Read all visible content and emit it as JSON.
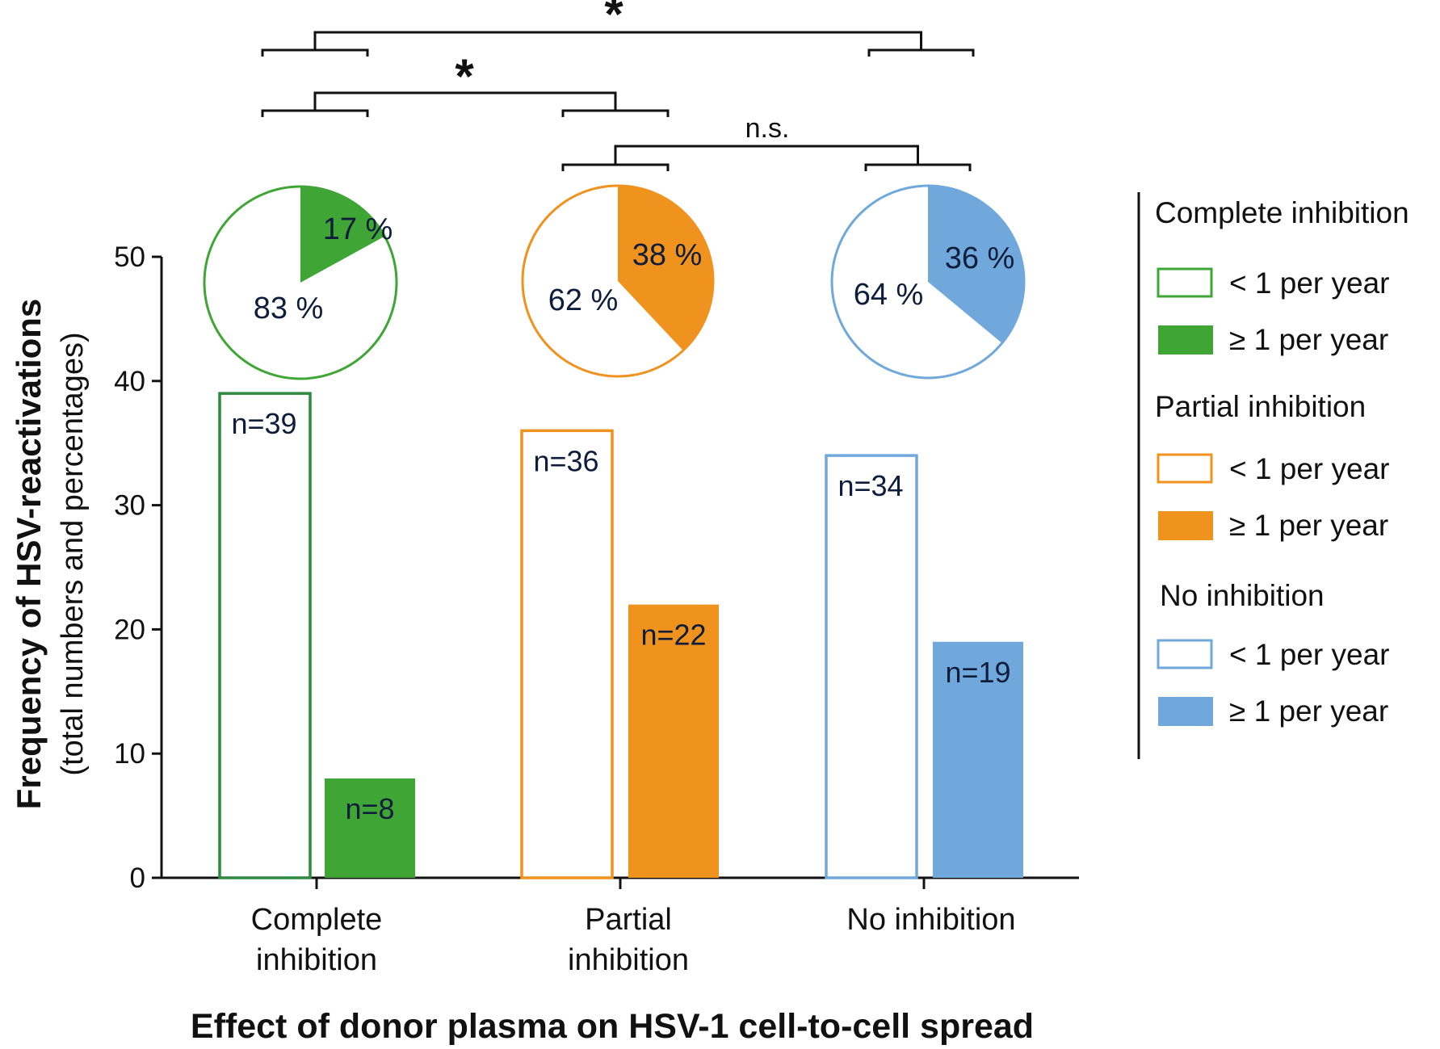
{
  "chart_data": {
    "type": "bar",
    "title": "",
    "xlabel": "Effect of donor plasma on HSV-1 cell-to-cell spread",
    "ylabel": {
      "main": "Frequency of  HSV-reactivations",
      "sub": "(total numbers and percentages)"
    },
    "ylim": [
      0,
      50
    ],
    "yticks": [
      0,
      10,
      20,
      30,
      40,
      50
    ],
    "categories": [
      {
        "label_line1": "Complete",
        "label_line2": "inhibition"
      },
      {
        "label_line1": "Partial",
        "label_line2": "inhibition"
      },
      {
        "label_line1": "No inhibition",
        "label_line2": ""
      }
    ],
    "series": [
      {
        "name": "< 1 per year",
        "style": "outline",
        "values": [
          39,
          36,
          34
        ],
        "labels": [
          "n=39",
          "n=36",
          "n=34"
        ]
      },
      {
        "name": "≥ 1 per year",
        "style": "filled",
        "values": [
          8,
          22,
          19
        ],
        "labels": [
          "n=8",
          "n=22",
          "n=19"
        ]
      }
    ],
    "colors": [
      "#3fa535",
      "#f0921e",
      "#70a8db"
    ],
    "bar_outline_color": "#2d8a3e",
    "pies": [
      {
        "filled_pct": 17,
        "filled_label": "17 %",
        "empty_label": "83 %"
      },
      {
        "filled_pct": 38,
        "filled_label": "38 %",
        "empty_label": "62 %"
      },
      {
        "filled_pct": 36,
        "filled_label": "36 %",
        "empty_label": "64 %"
      }
    ],
    "significance": [
      {
        "from": "Complete inhibition",
        "to": "No inhibition",
        "label": "*"
      },
      {
        "from": "Complete inhibition",
        "to": "Partial inhibition",
        "label": "*"
      },
      {
        "from": "Partial inhibition",
        "to": "No inhibition",
        "label": "n.s."
      }
    ],
    "legend": {
      "placement": "right",
      "groups": [
        {
          "heading": "Complete inhibition",
          "items": [
            "< 1 per year",
            "≥ 1 per year"
          ]
        },
        {
          "heading": "Partial inhibition",
          "items": [
            "< 1 per year",
            "≥ 1 per year"
          ]
        },
        {
          "heading": "No inhibition",
          "items": [
            "< 1 per year",
            "≥ 1 per year"
          ]
        }
      ]
    }
  }
}
